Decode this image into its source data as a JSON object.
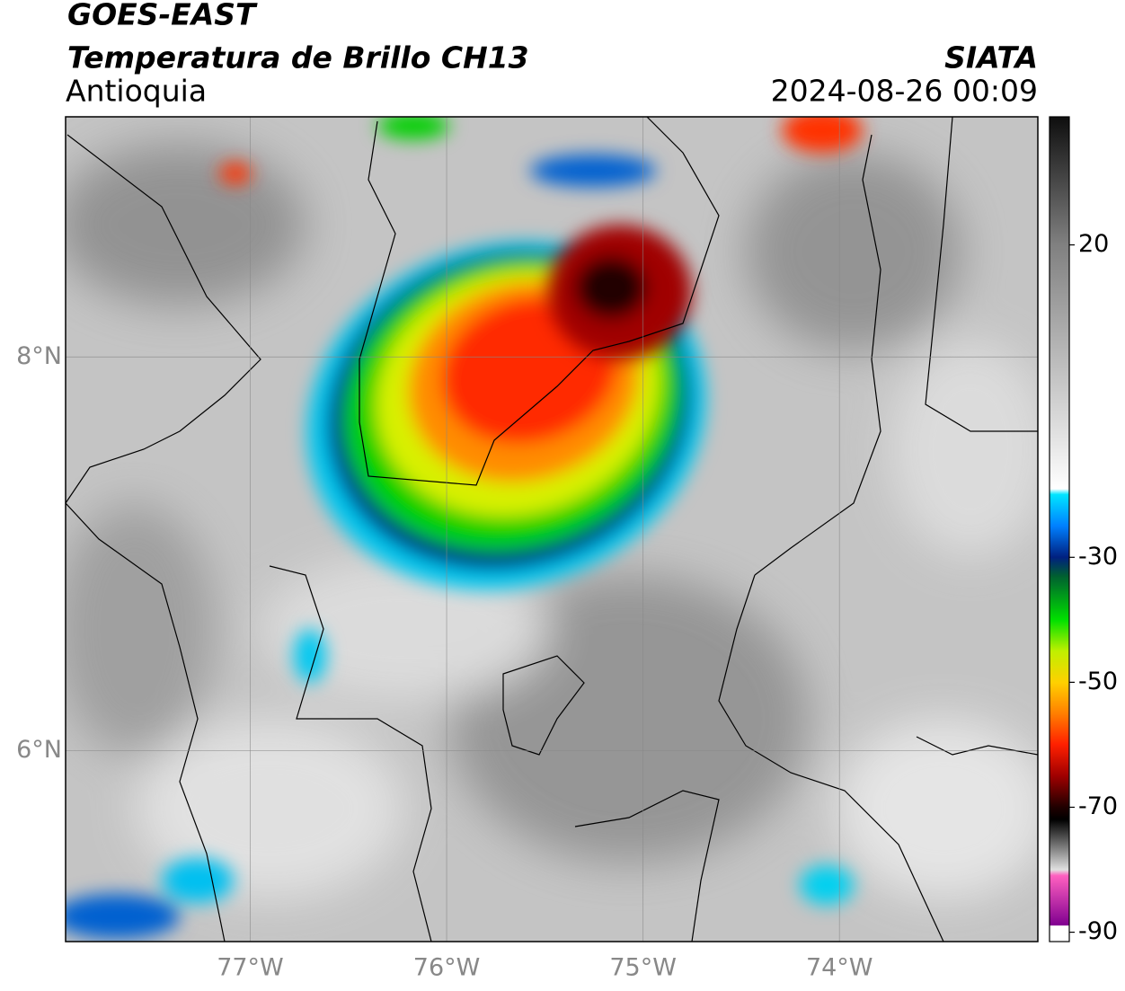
{
  "header": {
    "title": "GOES-EAST",
    "subtitle": "Temperatura de Brillo CH13",
    "region": "Antioquia",
    "source": "SIATA",
    "datetime": "2024-08-26 00:09"
  },
  "map": {
    "lonlim": [
      -77.94,
      -72.99
    ],
    "latlim": [
      5.03,
      9.22
    ],
    "lonticks": [
      {
        "value": -77,
        "label": "77°W"
      },
      {
        "value": -76,
        "label": "76°W"
      },
      {
        "value": -75,
        "label": "75°W"
      },
      {
        "value": -74,
        "label": "74°W"
      }
    ],
    "latticks": [
      {
        "value": 8,
        "label": "8°N"
      },
      {
        "value": 6,
        "label": "6°N"
      }
    ]
  },
  "colorbar": {
    "lim": [
      -91.5,
      40.5
    ],
    "ticks": [
      20,
      -30,
      -50,
      -70,
      -90
    ]
  }
}
